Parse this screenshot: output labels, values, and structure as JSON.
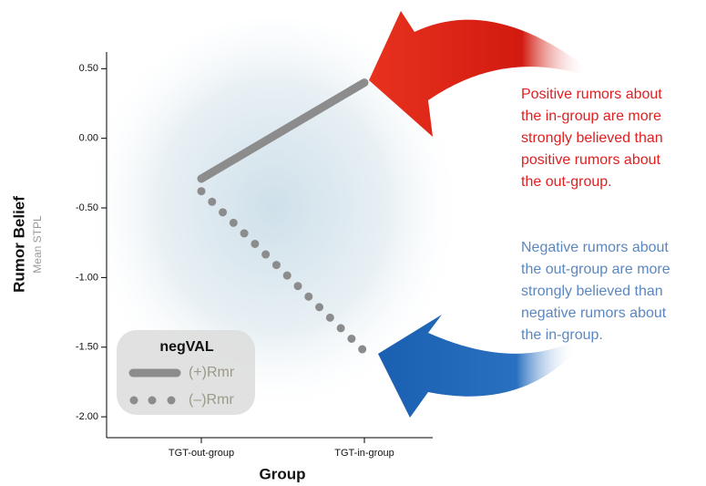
{
  "chart_data": {
    "type": "line",
    "y_label": "Rumor Belief",
    "y_sublabel": "Mean STPL",
    "x_label": "Group",
    "categories": [
      "TGT-out-group",
      "TGT-in-group"
    ],
    "series": [
      {
        "name": "(+)Rmr",
        "color": "#8c8c8c",
        "style": "solid",
        "values": [
          -0.29,
          0.4
        ]
      },
      {
        "name": "(–)Rmr",
        "color": "#8c8c8c",
        "style": "dotted",
        "values": [
          -0.38,
          -1.53
        ]
      }
    ],
    "ylim": [
      -2.15,
      0.62
    ],
    "yticks": [
      {
        "value": 0.5,
        "label": "0.50"
      },
      {
        "value": 0,
        "label": "0.00"
      },
      {
        "value": -0.5,
        "label": "-0.50"
      },
      {
        "value": -1,
        "label": "-1.00"
      },
      {
        "value": -1.5,
        "label": "-1.50"
      },
      {
        "value": -2,
        "label": "-2.00"
      }
    ],
    "legend_title": "negVAL",
    "legend_position": "lower left",
    "annotations": [
      {
        "color": "#e02020",
        "lines": [
          "Positive rumors about",
          "the in-group are more",
          "strongly believed than",
          "positive rumors about",
          "the out-group."
        ]
      },
      {
        "color": "#5b87c0",
        "lines": [
          "Negative rumors about",
          "the out-group are more",
          "strongly believed than",
          "negative rumors about",
          "the in-group."
        ]
      }
    ]
  }
}
